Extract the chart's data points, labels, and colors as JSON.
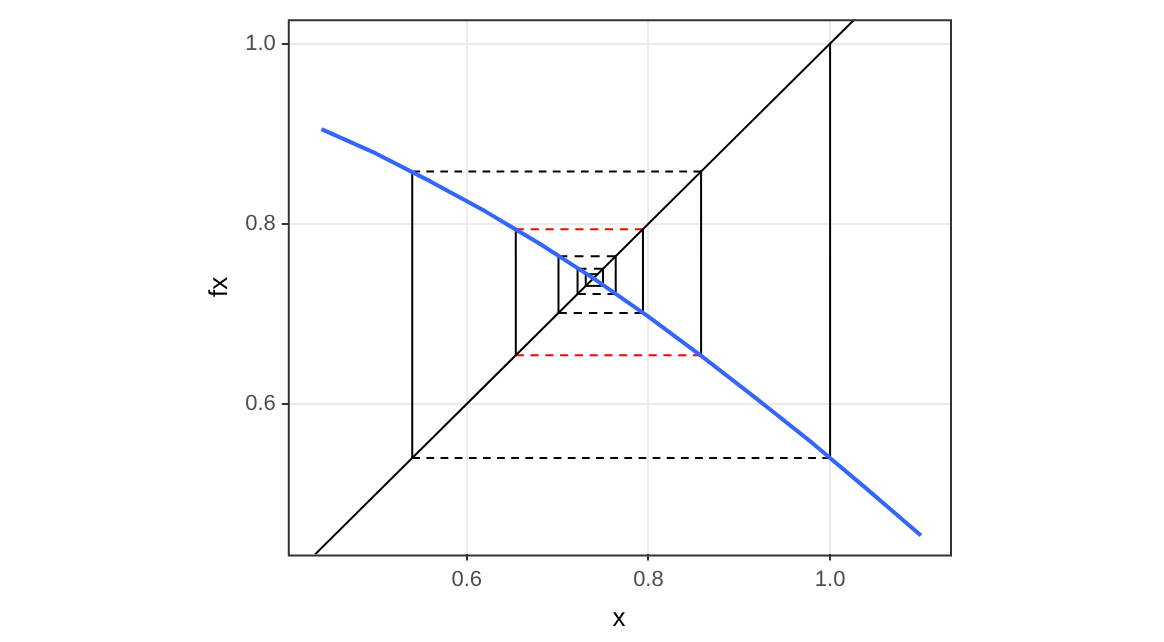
{
  "chart_data": {
    "type": "line",
    "xlabel": "x",
    "ylabel": "fx",
    "xlim": [
      0.403,
      1.132
    ],
    "ylim": [
      0.433,
      1.027
    ],
    "xticks": [
      0.6,
      0.8,
      {
        "value": 1,
        "label": "1.0"
      }
    ],
    "yticks": [
      0.6,
      0.8,
      {
        "value": 1,
        "label": "1.0"
      }
    ],
    "grid": true,
    "marker": "none",
    "series": [
      {
        "color": "#3366ff",
        "line_style": "solid",
        "x": [
          0.44,
          0.5,
          0.56,
          0.62,
          0.68,
          0.74,
          0.8,
          0.86,
          0.92,
          0.98,
          1.04,
          1.1
        ],
        "values": [
          0.905,
          0.878,
          0.847,
          0.814,
          0.778,
          0.739,
          0.697,
          0.652,
          0.605,
          0.557,
          0.506,
          0.454
        ]
      },
      {
        "color": "#000000",
        "line_style": "solid",
        "x": [
          0.433,
          1.027
        ],
        "values": [
          0.433,
          1.027
        ]
      },
      {
        "color": "#000000",
        "line_style": "solid",
        "x": [
          1,
          1
        ],
        "values": [
          1,
          0.54
        ]
      },
      {
        "color": "#000000",
        "line_style": "solid",
        "x": [
          0.54,
          0.54
        ],
        "values": [
          0.54,
          0.858
        ]
      },
      {
        "color": "#000000",
        "line_style": "solid",
        "x": [
          0.858,
          0.858
        ],
        "values": [
          0.858,
          0.654
        ]
      },
      {
        "color": "#000000",
        "line_style": "solid",
        "x": [
          0.654,
          0.654
        ],
        "values": [
          0.654,
          0.794
        ]
      },
      {
        "color": "#000000",
        "line_style": "solid",
        "x": [
          0.794,
          0.794
        ],
        "values": [
          0.794,
          0.701
        ]
      },
      {
        "color": "#000000",
        "line_style": "solid",
        "x": [
          0.701,
          0.701
        ],
        "values": [
          0.701,
          0.764
        ]
      },
      {
        "color": "#000000",
        "line_style": "solid",
        "x": [
          0.764,
          0.764
        ],
        "values": [
          0.764,
          0.722
        ]
      },
      {
        "color": "#000000",
        "line_style": "solid",
        "x": [
          0.722,
          0.722
        ],
        "values": [
          0.722,
          0.75
        ]
      },
      {
        "color": "#000000",
        "line_style": "solid",
        "x": [
          0.75,
          0.75
        ],
        "values": [
          0.75,
          0.731
        ]
      },
      {
        "color": "#000000",
        "line_style": "solid",
        "x": [
          0.731,
          0.731
        ],
        "values": [
          0.731,
          0.744
        ]
      },
      {
        "color": "#000000",
        "line_style": "dashed",
        "x": [
          1,
          0.54
        ],
        "values": [
          0.54,
          0.54
        ]
      },
      {
        "color": "#000000",
        "line_style": "dashed",
        "x": [
          0.54,
          0.858
        ],
        "values": [
          0.858,
          0.858
        ]
      },
      {
        "color": "#ff0000",
        "line_style": "dashed",
        "x": [
          0.858,
          0.654
        ],
        "values": [
          0.654,
          0.654
        ]
      },
      {
        "color": "#ff0000",
        "line_style": "dashed",
        "x": [
          0.654,
          0.794
        ],
        "values": [
          0.794,
          0.794
        ]
      },
      {
        "color": "#000000",
        "line_style": "dashed",
        "x": [
          0.794,
          0.701
        ],
        "values": [
          0.701,
          0.701
        ]
      },
      {
        "color": "#000000",
        "line_style": "dashed",
        "x": [
          0.701,
          0.764
        ],
        "values": [
          0.764,
          0.764
        ]
      },
      {
        "color": "#000000",
        "line_style": "dashed",
        "x": [
          0.764,
          0.722
        ],
        "values": [
          0.722,
          0.722
        ]
      },
      {
        "color": "#000000",
        "line_style": "dashed",
        "x": [
          0.722,
          0.75
        ],
        "values": [
          0.75,
          0.75
        ]
      },
      {
        "color": "#000000",
        "line_style": "dashed",
        "x": [
          0.75,
          0.731
        ],
        "values": [
          0.731,
          0.731
        ]
      },
      {
        "color": "#000000",
        "line_style": "dashed",
        "x": [
          0.731,
          0.744
        ],
        "values": [
          0.744,
          0.744
        ]
      }
    ]
  }
}
